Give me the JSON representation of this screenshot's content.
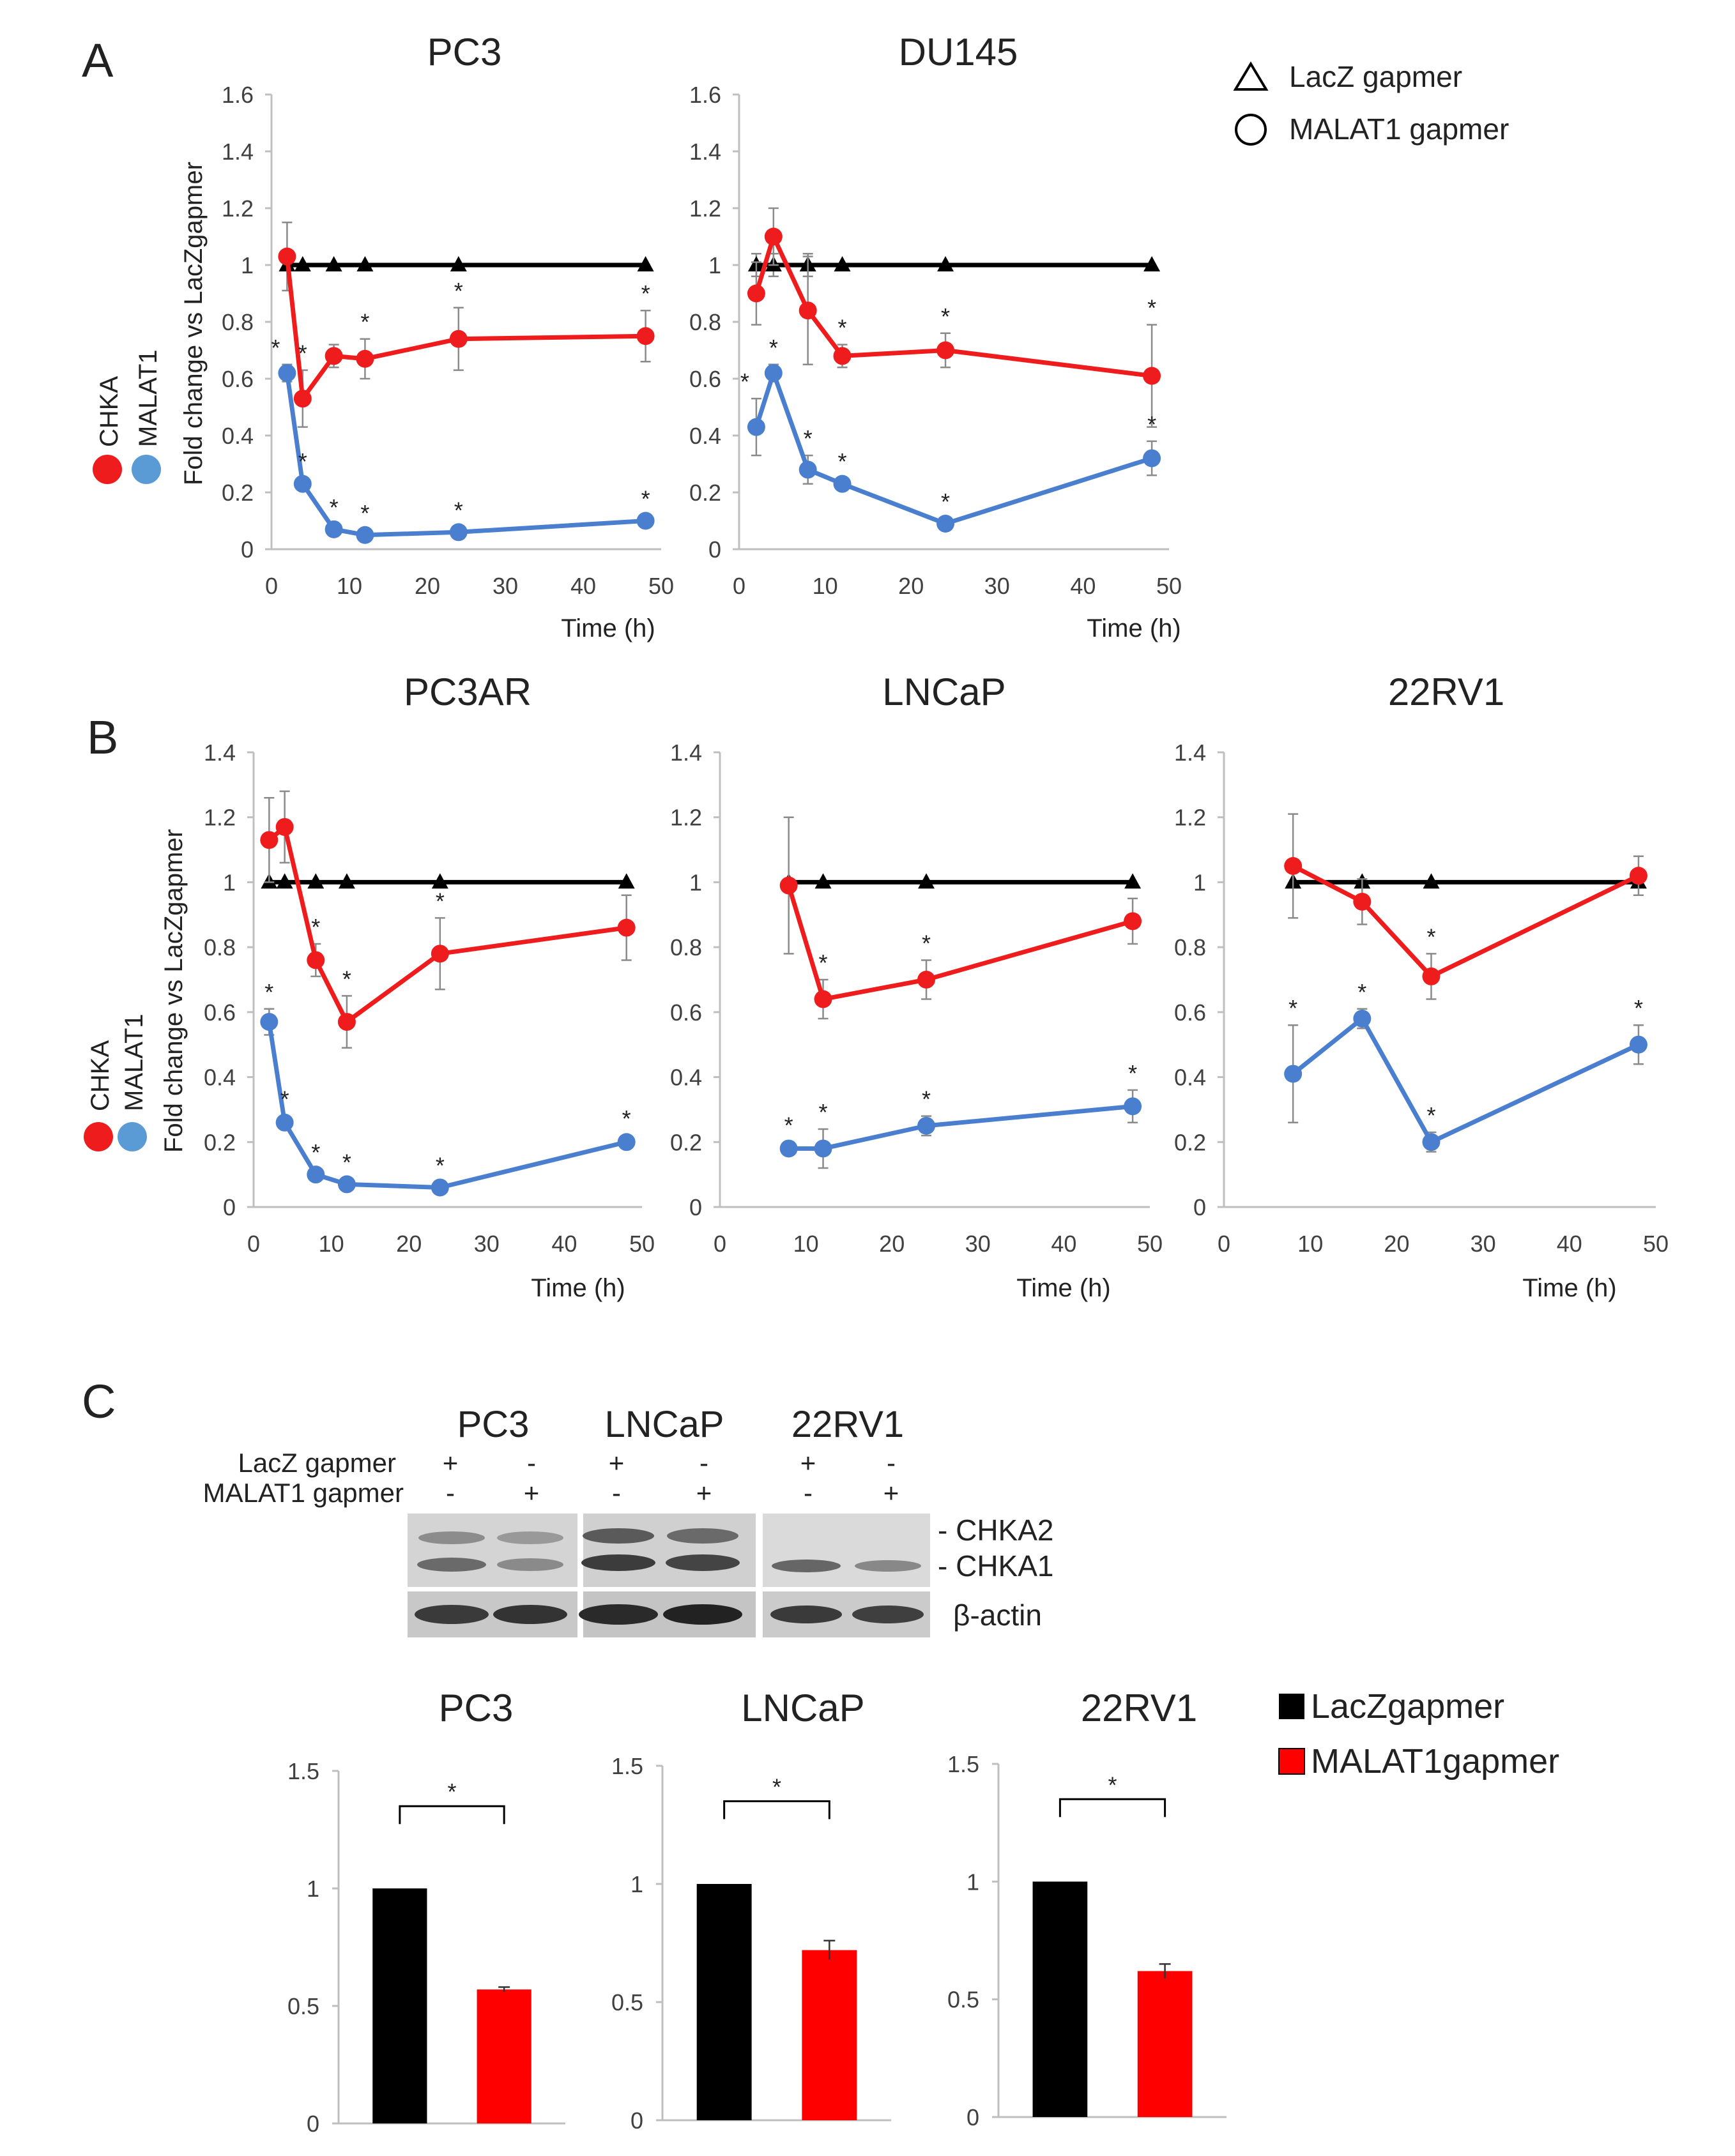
{
  "panels": {
    "A": "A",
    "B": "B",
    "C": "C"
  },
  "legend_top": {
    "lacz": "LacZ gapmer",
    "malat1": "MALAT1 gapmer"
  },
  "side_legend": {
    "chka": "CHKA",
    "malat1": "MALAT1"
  },
  "ylabel": "Fold change vs LacZgapmer",
  "xlabel": "Time (h)",
  "colors": {
    "chka": "#ee1c1c",
    "malat1": "#4a7fcf",
    "lacz": "#000000",
    "axis": "#bfbfbf",
    "bar_lacz": "#000000",
    "bar_malat1": "#ff0000"
  },
  "chart_data": [
    {
      "id": "pc3",
      "type": "line",
      "title": "PC3",
      "xlabel": "Time (h)",
      "ylabel": "Fold change vs LacZgapmer",
      "xlim": [
        0,
        50
      ],
      "ylim": [
        0,
        1.6
      ],
      "xticks": [
        "0",
        "10",
        "20",
        "30",
        "40",
        "50"
      ],
      "yticks": [
        "0",
        "0.2",
        "0.4",
        "0.6",
        "0.8",
        "1",
        "1.2",
        "1.4",
        "1.6"
      ],
      "series": [
        {
          "name": "LacZ gapmer",
          "x": [
            2,
            4,
            8,
            12,
            24,
            48
          ],
          "y": [
            1,
            1,
            1,
            1,
            1,
            1
          ],
          "err": [
            0,
            0,
            0,
            0,
            0,
            0
          ],
          "sig": [
            false,
            false,
            false,
            false,
            false,
            false
          ]
        },
        {
          "name": "CHKA",
          "x": [
            2,
            4,
            8,
            12,
            24,
            48
          ],
          "y": [
            1.03,
            0.53,
            0.68,
            0.67,
            0.74,
            0.75
          ],
          "err": [
            0.12,
            0.1,
            0.04,
            0.07,
            0.11,
            0.09
          ],
          "sig": [
            false,
            true,
            false,
            true,
            true,
            true
          ]
        },
        {
          "name": "MALAT1",
          "x": [
            2,
            4,
            8,
            12,
            24,
            48
          ],
          "y": [
            0.62,
            0.23,
            0.07,
            0.05,
            0.06,
            0.1
          ],
          "err": [
            0.03,
            0.02,
            0.01,
            0.01,
            0.01,
            0.01
          ],
          "sig": [
            true,
            true,
            true,
            true,
            true,
            true
          ]
        }
      ]
    },
    {
      "id": "du145",
      "type": "line",
      "title": "DU145",
      "xlabel": "Time (h)",
      "ylabel": "",
      "xlim": [
        0,
        50
      ],
      "ylim": [
        0,
        1.6
      ],
      "xticks": [
        "0",
        "10",
        "20",
        "30",
        "40",
        "50"
      ],
      "yticks": [
        "0",
        "0.2",
        "0.4",
        "0.6",
        "0.8",
        "1",
        "1.2",
        "1.4",
        "1.6"
      ],
      "series": [
        {
          "name": "LacZ gapmer",
          "x": [
            2,
            4,
            8,
            12,
            24,
            48
          ],
          "y": [
            1,
            1,
            1,
            1,
            1,
            1
          ],
          "err": [
            0.04,
            0.04,
            0.04,
            0,
            0,
            0
          ],
          "sig": [
            false,
            false,
            false,
            false,
            false,
            false
          ]
        },
        {
          "name": "CHKA",
          "x": [
            2,
            4,
            8,
            12,
            24,
            48
          ],
          "y": [
            0.9,
            1.1,
            0.84,
            0.68,
            0.7,
            0.61
          ],
          "err": [
            0.11,
            0.1,
            0.19,
            0.04,
            0.06,
            0.18
          ],
          "sig": [
            false,
            false,
            false,
            true,
            true,
            true
          ]
        },
        {
          "name": "MALAT1",
          "x": [
            2,
            4,
            8,
            12,
            24,
            48
          ],
          "y": [
            0.43,
            0.62,
            0.28,
            0.23,
            0.09,
            0.32
          ],
          "err": [
            0.1,
            0.03,
            0.05,
            0.02,
            0.01,
            0.06
          ],
          "sig": [
            true,
            true,
            true,
            true,
            true,
            true
          ]
        }
      ]
    },
    {
      "id": "pc3ar",
      "type": "line",
      "title": "PC3AR",
      "xlabel": "Time (h)",
      "ylabel": "Fold change  vs LacZgapmer",
      "xlim": [
        0,
        50
      ],
      "ylim": [
        0,
        1.4
      ],
      "xticks": [
        "0",
        "10",
        "20",
        "30",
        "40",
        "50"
      ],
      "yticks": [
        "0",
        "0.2",
        "0.4",
        "0.6",
        "0.8",
        "1",
        "1.2",
        "1.4"
      ],
      "series": [
        {
          "name": "LacZ gapmer",
          "x": [
            2,
            4,
            8,
            12,
            24,
            48
          ],
          "y": [
            1,
            1,
            1,
            1,
            1,
            1
          ],
          "err": [
            0,
            0,
            0,
            0,
            0,
            0
          ],
          "sig": [
            false,
            false,
            false,
            false,
            false,
            false
          ]
        },
        {
          "name": "CHKA",
          "x": [
            2,
            4,
            8,
            12,
            24,
            48
          ],
          "y": [
            1.13,
            1.17,
            0.76,
            0.57,
            0.78,
            0.86
          ],
          "err": [
            0.13,
            0.11,
            0.05,
            0.08,
            0.11,
            0.1
          ],
          "sig": [
            false,
            false,
            true,
            true,
            true,
            false
          ]
        },
        {
          "name": "MALAT1",
          "x": [
            2,
            4,
            8,
            12,
            24,
            48
          ],
          "y": [
            0.57,
            0.26,
            0.1,
            0.07,
            0.06,
            0.2
          ],
          "err": [
            0.04,
            0.02,
            0.01,
            0.01,
            0.01,
            0.02
          ],
          "sig": [
            true,
            true,
            true,
            true,
            true,
            true
          ]
        }
      ]
    },
    {
      "id": "lncap",
      "type": "line",
      "title": "LNCaP",
      "xlabel": "Time (h)",
      "ylabel": "",
      "xlim": [
        0,
        50
      ],
      "ylim": [
        0,
        1.4
      ],
      "xticks": [
        "0",
        "10",
        "20",
        "30",
        "40",
        "50"
      ],
      "yticks": [
        "0",
        "0.2",
        "0.4",
        "0.6",
        "0.8",
        "1",
        "1.2",
        "1.4"
      ],
      "series": [
        {
          "name": "LacZ gapmer",
          "x": [
            8,
            12,
            24,
            48
          ],
          "y": [
            1,
            1,
            1,
            1
          ],
          "err": [
            0,
            0,
            0,
            0
          ],
          "sig": [
            false,
            false,
            false,
            false
          ]
        },
        {
          "name": "CHKA",
          "x": [
            8,
            12,
            24,
            48
          ],
          "y": [
            0.99,
            0.64,
            0.7,
            0.88
          ],
          "err": [
            0.21,
            0.06,
            0.06,
            0.07
          ],
          "sig": [
            false,
            true,
            true,
            false
          ]
        },
        {
          "name": "MALAT1",
          "x": [
            8,
            12,
            24,
            48
          ],
          "y": [
            0.18,
            0.18,
            0.25,
            0.31
          ],
          "err": [
            0.02,
            0.06,
            0.03,
            0.05
          ],
          "sig": [
            true,
            true,
            true,
            true
          ]
        }
      ]
    },
    {
      "id": "22rv1",
      "type": "line",
      "title": "22RV1",
      "xlabel": "Time (h)",
      "ylabel": "",
      "xlim": [
        0,
        50
      ],
      "ylim": [
        0,
        1.4
      ],
      "xticks": [
        "0",
        "10",
        "20",
        "30",
        "40",
        "50"
      ],
      "yticks": [
        "0",
        "0.2",
        "0.4",
        "0.6",
        "0.8",
        "1",
        "1.2",
        "1.4"
      ],
      "series": [
        {
          "name": "LacZ gapmer",
          "x": [
            8,
            16,
            24,
            48
          ],
          "y": [
            1,
            1,
            1,
            1
          ],
          "err": [
            0,
            0,
            0,
            0
          ],
          "sig": [
            false,
            false,
            false,
            false
          ]
        },
        {
          "name": "CHKA",
          "x": [
            8,
            16,
            24,
            48
          ],
          "y": [
            1.05,
            0.94,
            0.71,
            1.02
          ],
          "err": [
            0.16,
            0.07,
            0.07,
            0.06
          ],
          "sig": [
            false,
            false,
            true,
            false
          ]
        },
        {
          "name": "MALAT1",
          "x": [
            8,
            16,
            24,
            48
          ],
          "y": [
            0.41,
            0.58,
            0.2,
            0.5
          ],
          "err": [
            0.15,
            0.03,
            0.03,
            0.06
          ],
          "sig": [
            true,
            true,
            true,
            true
          ]
        }
      ]
    },
    {
      "id": "bar-pc3",
      "type": "bar",
      "title": "PC3",
      "ylim": [
        0,
        1.5
      ],
      "yticks": [
        "0",
        "0.5",
        "1",
        "1.5"
      ],
      "categories": [
        "LacZgapmer",
        "MALAT1gapmer"
      ],
      "values": [
        1.0,
        0.57
      ],
      "err": [
        0,
        0.01
      ],
      "significance": "*"
    },
    {
      "id": "bar-lncap",
      "type": "bar",
      "title": "LNCaP",
      "ylim": [
        0,
        1.5
      ],
      "yticks": [
        "0",
        "0.5",
        "1",
        "1.5"
      ],
      "categories": [
        "LacZgapmer",
        "MALAT1gapmer"
      ],
      "values": [
        1.0,
        0.72
      ],
      "err": [
        0,
        0.04
      ],
      "significance": "*"
    },
    {
      "id": "bar-22rv1",
      "type": "bar",
      "title": "22RV1",
      "ylim": [
        0,
        1.5
      ],
      "yticks": [
        "0",
        "0.5",
        "1",
        "1.5"
      ],
      "categories": [
        "LacZgapmer",
        "MALAT1gapmer"
      ],
      "values": [
        1.0,
        0.62
      ],
      "err": [
        0,
        0.03
      ],
      "significance": "*"
    }
  ],
  "blot": {
    "cell_lines": [
      "PC3",
      "LNCaP",
      "22RV1"
    ],
    "row_labels": [
      "LacZ gapmer",
      "MALAT1 gapmer"
    ],
    "lacz_marks": [
      "+",
      "-",
      "+",
      "-",
      "+",
      "-"
    ],
    "malat_marks": [
      "-",
      "+",
      "-",
      "+",
      "-",
      "+"
    ],
    "bands": [
      "- CHKA2",
      "- CHKA1",
      "β-actin"
    ]
  },
  "bar_legend": {
    "lacz": "LacZgapmer",
    "malat1": "MALAT1gapmer"
  }
}
